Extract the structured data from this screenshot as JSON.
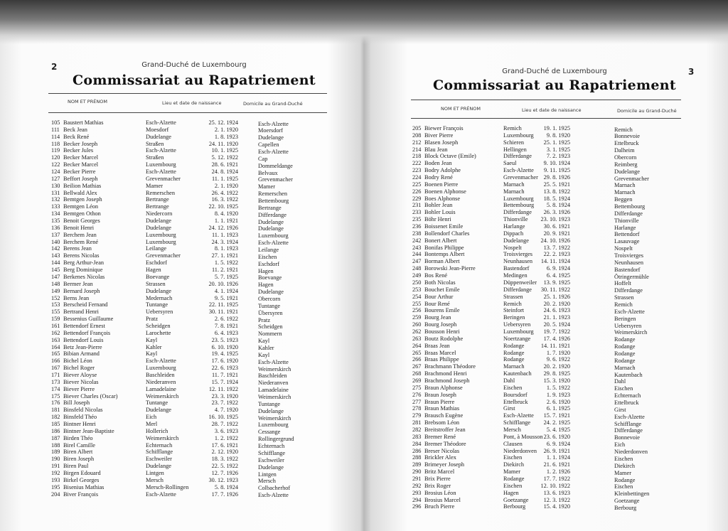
{
  "pages": [
    {
      "page_number": "2",
      "region": "Grand-Duché de Luxembourg",
      "title": "Commissariat au Rapatriement",
      "headers": {
        "name": "NOM ET PRÉNOM",
        "birth": "Lieu et date de naissance",
        "domicile": "Domicile au Grand-Duché"
      },
      "rows": [
        [
          "105",
          "Baustert Mathias",
          "Esch-Alzette",
          "25. 12. 1924",
          "Esch-Alzette"
        ],
        [
          "111",
          "Beck Jean",
          "Moesdorf",
          "2. 1. 1920",
          "Moersdorf"
        ],
        [
          "114",
          "Beck René",
          "Dudelange",
          "1. 8. 1923",
          "Dudelange"
        ],
        [
          "118",
          "Becker Joseph",
          "Straßen",
          "24. 11. 1920",
          "Capellen"
        ],
        [
          "119",
          "Becker Jules",
          "Esch-Alzette",
          "10. 1. 1925",
          "Esch-Alzette"
        ],
        [
          "120",
          "Becker Marcel",
          "Straßen",
          "5. 12. 1922",
          "Cap"
        ],
        [
          "122",
          "Becker Marcel",
          "Luxembourg",
          "28. 6. 1921",
          "Dommeldange"
        ],
        [
          "124",
          "Becker Pierre",
          "Esch-Alzette",
          "24. 8. 1924",
          "Belvaux"
        ],
        [
          "127",
          "Beffort Joseph",
          "Grevenmacher",
          "11. 1. 1925",
          "Grevenmacher"
        ],
        [
          "130",
          "Beilion Mathias",
          "Mamer",
          "2. 1. 1920",
          "Mamer"
        ],
        [
          "131",
          "Bellwald Alex",
          "Remerschen",
          "26. 4. 1922",
          "Remerschen"
        ],
        [
          "132",
          "Bemtgen Joseph",
          "Bertrange",
          "16. 3. 1922",
          "Bettembourg"
        ],
        [
          "133",
          "Bemtgen Léon",
          "Bertrange",
          "22. 10. 1925",
          "Bertrange"
        ],
        [
          "134",
          "Bemtgen Othon",
          "Niedercorn",
          "8. 4. 1920",
          "Differdange"
        ],
        [
          "135",
          "Benoit Georges",
          "Dudelange",
          "1. 1. 1921",
          "Dudelange"
        ],
        [
          "136",
          "Benoit Henri",
          "Dudelange",
          "24. 12. 1926",
          "Dudelange"
        ],
        [
          "137",
          "Berchem Jean",
          "Luxembourg",
          "11. 1. 1923",
          "Luxembourg"
        ],
        [
          "140",
          "Berchem René",
          "Luxembourg",
          "24. 3. 1924",
          "Esch-Alzette"
        ],
        [
          "142",
          "Berens Jean",
          "Leilange",
          "8. 1. 1923",
          "Leilange"
        ],
        [
          "143",
          "Berens Nicolas",
          "Grevenmacher",
          "27. 1. 1921",
          "Eischen"
        ],
        [
          "144",
          "Berg Arthur-Jean",
          "Eschdorf",
          "1. 5. 1922",
          "Eschdorf"
        ],
        [
          "145",
          "Berg Dominique",
          "Hagen",
          "11. 2. 1921",
          "Hagen"
        ],
        [
          "147",
          "Berkenes Nicolas",
          "Boevange",
          "5. 7. 1925",
          "Boevange"
        ],
        [
          "148",
          "Bermer Jean",
          "Strassen",
          "20. 10. 1926",
          "Hagen"
        ],
        [
          "149",
          "Bernard Joseph",
          "Dudelange",
          "4. 1. 1924",
          "Dudelange"
        ],
        [
          "152",
          "Berns Jean",
          "Medernach",
          "9. 5. 1921",
          "Obercorn"
        ],
        [
          "153",
          "Berscheid Fernand",
          "Tuntange",
          "22. 11. 1925",
          "Tuntange"
        ],
        [
          "155",
          "Bertrand Henri",
          "Uebersyren",
          "30. 11. 1921",
          "Übersyren"
        ],
        [
          "159",
          "Bessenius Guillaume",
          "Pratz",
          "2. 6. 1922",
          "Pratz"
        ],
        [
          "161",
          "Bettendorf Ernest",
          "Scheidgen",
          "7. 8. 1921",
          "Scheidgen"
        ],
        [
          "162",
          "Bettendorf François",
          "Larochette",
          "6. 4. 1923",
          "Nommern"
        ],
        [
          "163",
          "Bettendorf Louis",
          "Kayl",
          "23. 5. 1923",
          "Kayl"
        ],
        [
          "164",
          "Betz Jean-Pierre",
          "Kahler",
          "6. 10. 1920",
          "Kahler"
        ],
        [
          "165",
          "Bibian Armand",
          "Kayl",
          "19. 4. 1925",
          "Kayl"
        ],
        [
          "166",
          "Bichel Léon",
          "Esch-Alzette",
          "17. 6. 1920",
          "Esch-Alzette"
        ],
        [
          "167",
          "Bichel Roger",
          "Luxembourg",
          "22. 6. 1923",
          "Weimerskirch"
        ],
        [
          "171",
          "Biever Aloyse",
          "Baschleiden",
          "11. 7. 1921",
          "Baschleiden"
        ],
        [
          "173",
          "Biever Nicolas",
          "Niederanven",
          "15. 7. 1924",
          "Niederanven"
        ],
        [
          "174",
          "Biever Pierre",
          "Lamadelaine",
          "12. 11. 1922",
          "Lamadelaine"
        ],
        [
          "175",
          "Biever Charles (Oscar)",
          "Weimerskirch",
          "23. 3. 1920",
          "Weimerskirch"
        ],
        [
          "176",
          "Bill Joseph",
          "Tuntange",
          "23. 7. 1922",
          "Tuntange"
        ],
        [
          "181",
          "Binsfeld Nicolas",
          "Dudelange",
          "4. 7. 1920",
          "Dudelange"
        ],
        [
          "182",
          "Binsfeld Théo",
          "Eich",
          "16. 10. 1925",
          "Weimerskirch"
        ],
        [
          "185",
          "Bintner Henri",
          "Merl",
          "28. 7. 1922",
          "Luxembourg"
        ],
        [
          "186",
          "Bintner Jean-Baptiste",
          "Hollerich",
          "3. 6. 1923",
          "Cessange"
        ],
        [
          "187",
          "Birden Théo",
          "Weimerskirch",
          "1. 2. 1922",
          "Rollingergrund"
        ],
        [
          "188",
          "Birel Camille",
          "Echternach",
          "17. 6. 1921",
          "Echternach"
        ],
        [
          "189",
          "Biren Albert",
          "Schifflange",
          "2. 12. 1920",
          "Schifflange"
        ],
        [
          "190",
          "Biren Joseph",
          "Eschweiler",
          "18. 3. 1922",
          "Eschweiler"
        ],
        [
          "191",
          "Biren Paul",
          "Dudelange",
          "22. 5. 1922",
          "Dudelange"
        ],
        [
          "192",
          "Birgen Edouard",
          "Lintgen",
          "12. 7. 1926",
          "Lintgen"
        ],
        [
          "193",
          "Birkel Georges",
          "Mersch",
          "30. 12. 1923",
          "Mersch"
        ],
        [
          "195",
          "Bisenius Mathias",
          "Mersch-Rollingen",
          "5. 8. 1924",
          "Colbacherhof"
        ],
        [
          "204",
          "Biver François",
          "Esch-Alzette",
          "17. 7. 1926",
          "Esch-Alzette"
        ]
      ]
    },
    {
      "page_number": "3",
      "region": "Grand-Duché de Luxembourg",
      "title": "Commissariat au Rapatriement",
      "headers": {
        "name": "NOM ET PRÉNOM",
        "birth": "Lieu et date de naissance",
        "domicile": "Domicile au Grand-Duché"
      },
      "rows": [
        [
          "205",
          "Biewer François",
          "Remich",
          "19. 1. 1925",
          "Remich"
        ],
        [
          "208",
          "Biver Pierre",
          "Luxembourg",
          "9. 8. 1920",
          "Bonnevoie"
        ],
        [
          "212",
          "Blasen Joseph",
          "Schieren",
          "25. 1. 1925",
          "Ettelbruck"
        ],
        [
          "214",
          "Blau Jean",
          "Hellingen",
          "3. 1. 1925",
          "Dalheim"
        ],
        [
          "218",
          "Block Octave (Emile)",
          "Differdange",
          "7. 2. 1923",
          "Obercorn"
        ],
        [
          "222",
          "Boden Jean",
          "Saeul",
          "9. 10. 1924",
          "Reimberg"
        ],
        [
          "223",
          "Bodry Adolphe",
          "Esch-Alzette",
          "9. 11. 1925",
          "Dudelange"
        ],
        [
          "224",
          "Bodry René",
          "Grevenmacher",
          "29. 8. 1926",
          "Grevenmacher"
        ],
        [
          "225",
          "Boenen Pierre",
          "Marnach",
          "25. 5. 1921",
          "Marnach"
        ],
        [
          "226",
          "Boenen Alphonse",
          "Marnach",
          "13. 8. 1922",
          "Marnach"
        ],
        [
          "229",
          "Boes Alphonse",
          "Luxembourg",
          "18. 5. 1924",
          "Beggen"
        ],
        [
          "231",
          "Bohler Jean",
          "Bettembourg",
          "5. 8. 1924",
          "Bettembourg"
        ],
        [
          "233",
          "Bohler Louis",
          "Differdange",
          "26. 3. 1926",
          "Differdange"
        ],
        [
          "235",
          "Böhr Henri",
          "Thionville",
          "23. 10. 1923",
          "Thionville"
        ],
        [
          "236",
          "Boissenet Emile",
          "Harlange",
          "30. 6. 1921",
          "Harlange"
        ],
        [
          "238",
          "Bollendorf Charles",
          "Dippach",
          "20. 9. 1921",
          "Bettendorf"
        ],
        [
          "242",
          "Bonert Albert",
          "Dudelange",
          "24. 10. 1926",
          "Lasauvage"
        ],
        [
          "243",
          "Bonifas Philippe",
          "Nospelt",
          "13. 7. 1922",
          "Nospelt"
        ],
        [
          "244",
          "Bontemps Albert",
          "Troisvierges",
          "22. 2. 1923",
          "Troisvierges"
        ],
        [
          "247",
          "Borman Albert",
          "Neunhausen",
          "14. 11. 1924",
          "Neunhausen"
        ],
        [
          "248",
          "Borowski Jean-Pierre",
          "Bastendorf",
          "6. 9. 1924",
          "Bastendorf"
        ],
        [
          "249",
          "Bos René",
          "Medingen",
          "6. 4. 1925",
          "Ötringermühle"
        ],
        [
          "250",
          "Both Nicolas",
          "Düppenweiler",
          "13. 9. 1925",
          "Hoffelt"
        ],
        [
          "253",
          "Bouchet Emile",
          "Differdange",
          "30. 11. 1922",
          "Differdange"
        ],
        [
          "254",
          "Bour Arthur",
          "Strassen",
          "25. 1. 1926",
          "Strassen"
        ],
        [
          "255",
          "Bour René",
          "Remich",
          "20. 2. 1920",
          "Remich"
        ],
        [
          "256",
          "Bourens Emile",
          "Steinfort",
          "24. 6. 1923",
          "Esch-Alzette"
        ],
        [
          "259",
          "Bourg Jean",
          "Beringen",
          "21. 1. 1923",
          "Beringen"
        ],
        [
          "260",
          "Bourg Joseph",
          "Uebersyren",
          "20. 5. 1924",
          "Uebersyren"
        ],
        [
          "262",
          "Bousson Henri",
          "Luxembourg",
          "19. 7. 1922",
          "Weimerskirch"
        ],
        [
          "263",
          "Boutz Rodolphe",
          "Noertzange",
          "17. 4. 1926",
          "Rodange"
        ],
        [
          "264",
          "Braas Jean",
          "Rodange",
          "14. 11. 1921",
          "Rodange"
        ],
        [
          "265",
          "Braas Marcel",
          "Rodange",
          "1. 7. 1920",
          "Rodange"
        ],
        [
          "266",
          "Braas Philippe",
          "Rodange",
          "9. 6. 1922",
          "Rodange"
        ],
        [
          "267",
          "Brachmann Théodore",
          "Marnach",
          "20. 2. 1920",
          "Marnach"
        ],
        [
          "268",
          "Brachmond Henri",
          "Kautenbach",
          "29. 8. 1925",
          "Kautenbach"
        ],
        [
          "269",
          "Brachmond Joseph",
          "Dahl",
          "15. 3. 1920",
          "Dahl"
        ],
        [
          "275",
          "Braun Alphonse",
          "Eischen",
          "1. 5. 1922",
          "Eischen"
        ],
        [
          "276",
          "Braun Joseph",
          "Boursdorf",
          "1. 9. 1923",
          "Echternach"
        ],
        [
          "277",
          "Braun Pierre",
          "Ettelbruck",
          "2. 6. 1920",
          "Ettelbruck"
        ],
        [
          "278",
          "Braun Mathias",
          "Girst",
          "6. 1. 1925",
          "Girst"
        ],
        [
          "279",
          "Brausch Eugène",
          "Esch-Alzette",
          "15. 7. 1921",
          "Esch-Alzette"
        ],
        [
          "281",
          "Brebsom Léon",
          "Schifflange",
          "24. 2. 1925",
          "Schifflange"
        ],
        [
          "282",
          "Breitstroffer Jean",
          "Mersch",
          "5. 4. 1925",
          "Differdange"
        ],
        [
          "283",
          "Bremer René",
          "Pont, à Mousson",
          "23. 6. 1920",
          "Bonnevoie"
        ],
        [
          "284",
          "Bremer Théodore",
          "Clausen",
          "6. 9. 1924",
          "Eich"
        ],
        [
          "286",
          "Breser Nicolas",
          "Niederdonven",
          "26. 9. 1921",
          "Niederdonven"
        ],
        [
          "288",
          "Brickler Alex",
          "Eischen",
          "1. 1. 1924",
          "Eischen"
        ],
        [
          "289",
          "Brimeyer Joseph",
          "Diekirch",
          "21. 6. 1921",
          "Diekirch"
        ],
        [
          "290",
          "Britz Marcel",
          "Mamer",
          "1. 2. 1926",
          "Mamer"
        ],
        [
          "291",
          "Brix Pierre",
          "Rodange",
          "17. 7. 1922",
          "Rodange"
        ],
        [
          "292",
          "Brix Roger",
          "Eischen",
          "12. 10. 1922",
          "Eischen"
        ],
        [
          "293",
          "Brosius Léon",
          "Hagen",
          "13. 6. 1923",
          "Kleinbettingen"
        ],
        [
          "294",
          "Brosius Marcel",
          "Goetzange",
          "12. 3. 1922",
          "Goetzange"
        ],
        [
          "296",
          "Bruch Pierre",
          "Berbourg",
          "15. 4. 1920",
          "Berbourg"
        ]
      ]
    }
  ]
}
